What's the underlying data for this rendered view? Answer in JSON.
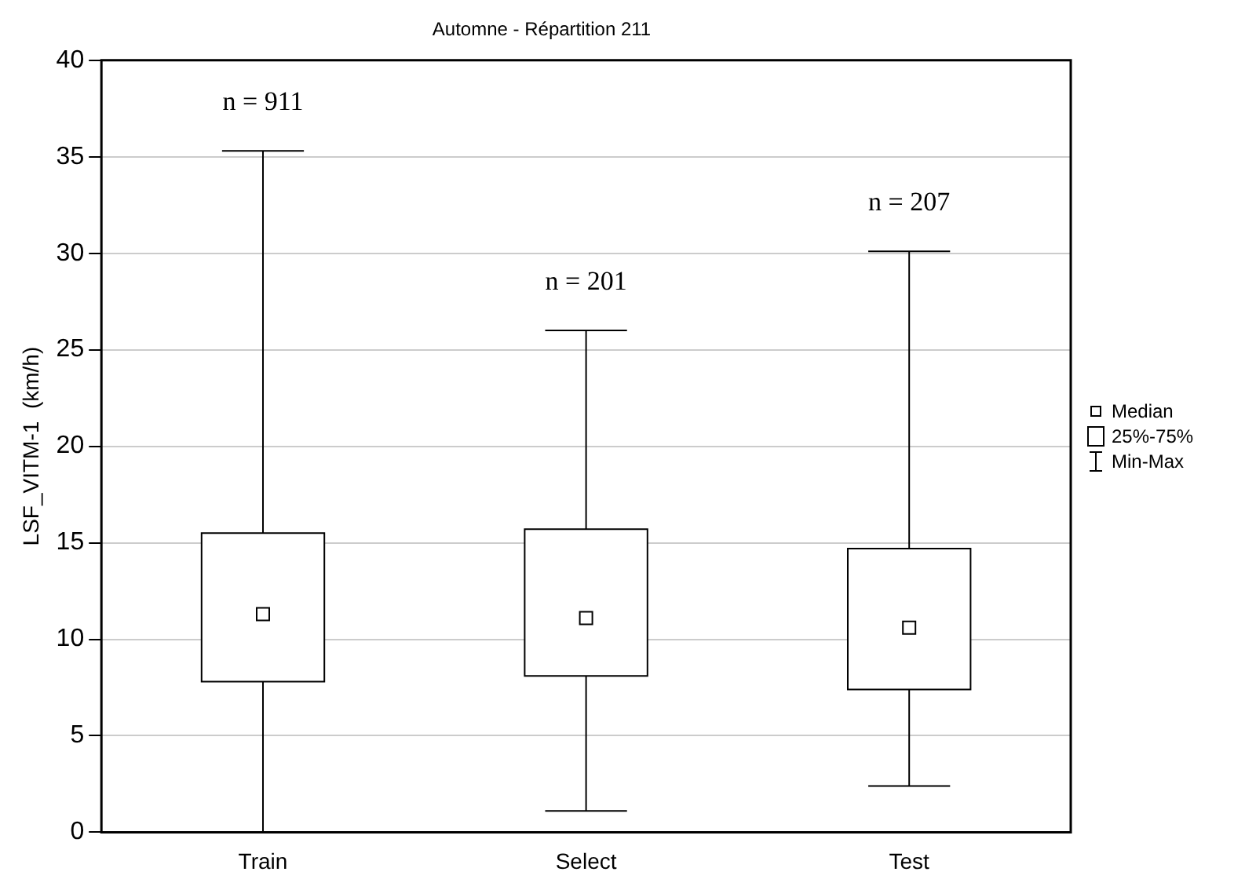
{
  "chart_data": {
    "type": "box",
    "title": "Automne - Répartition 211",
    "ylabel": "LSF_VITM-1  (km/h)",
    "categories": [
      "Train",
      "Select",
      "Test"
    ],
    "boxes": [
      {
        "low": 0,
        "q1": 7.8,
        "median": 11.3,
        "q3": 15.5,
        "high": 35.3
      },
      {
        "low": 1.1,
        "q1": 8.1,
        "median": 11.1,
        "q3": 15.7,
        "high": 26.0
      },
      {
        "low": 2.4,
        "q1": 7.4,
        "median": 10.6,
        "q3": 14.7,
        "high": 30.1
      }
    ],
    "ylim": [
      0,
      40
    ],
    "yticks": [
      0,
      5,
      10,
      15,
      20,
      25,
      30,
      35,
      40
    ],
    "grid": "y",
    "marker": "square",
    "annotations": [
      "n = 911",
      "n = 201",
      "n = 207",
      "Median",
      "25%-75%",
      "Min-Max"
    ]
  }
}
